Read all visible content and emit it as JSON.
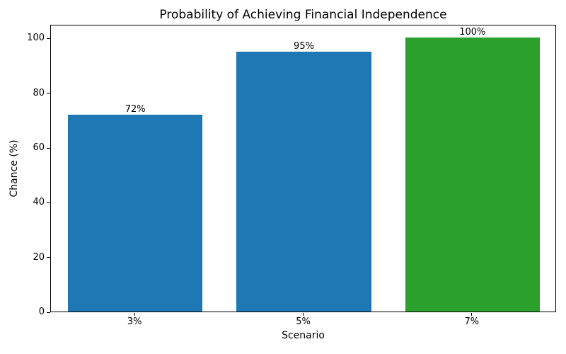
{
  "chart_data": {
    "type": "bar",
    "title": "Probability of Achieving Financial Independence",
    "xlabel": "Scenario",
    "ylabel": "Chance (%)",
    "categories": [
      "3%",
      "5%",
      "7%"
    ],
    "values": [
      72,
      95,
      100
    ],
    "bar_labels": [
      "72%",
      "95%",
      "100%"
    ],
    "bar_colors": [
      "#1f77b4",
      "#1f77b4",
      "#2ca02c"
    ],
    "yticks": [
      0,
      20,
      40,
      60,
      80,
      100
    ],
    "ylim": [
      0,
      105
    ],
    "grid": false,
    "legend_position": "none",
    "background": "#ffffff"
  }
}
